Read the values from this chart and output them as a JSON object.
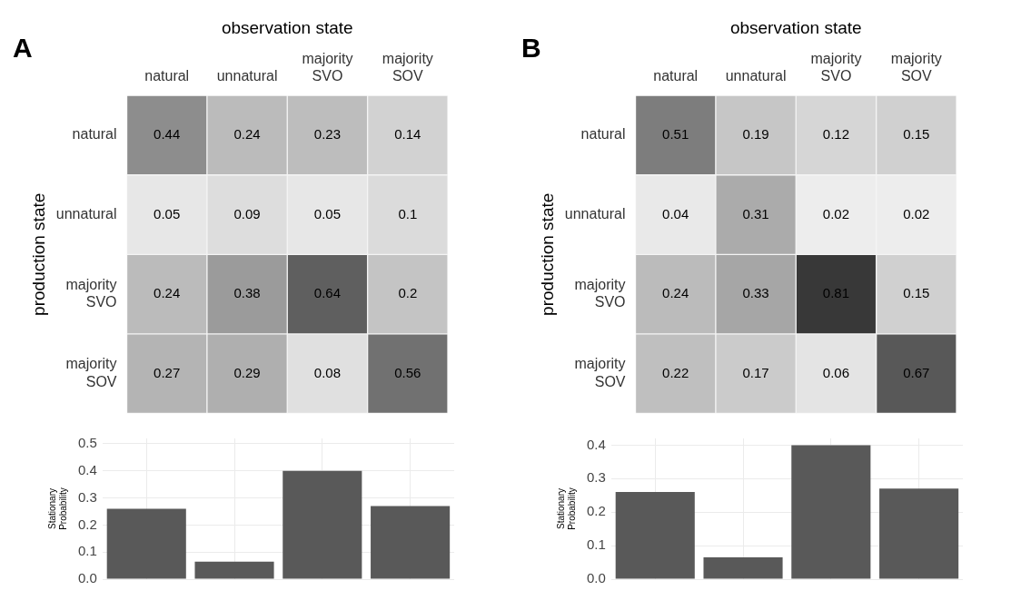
{
  "chart_data": [
    {
      "type": "heatmap",
      "xlabel": "observation state",
      "ylabel": "production state",
      "annotations": [
        "A"
      ],
      "categories": [
        "natural",
        "unnatural",
        "majority SVO",
        "majority SOV"
      ],
      "y_categories": [
        "natural",
        "unnatural",
        "majority SVO",
        "majority SOV"
      ],
      "data_labels": true,
      "cells": [
        [
          0.44,
          0.24,
          0.23,
          0.14
        ],
        [
          0.05,
          0.09,
          0.05,
          0.1
        ],
        [
          0.24,
          0.38,
          0.64,
          0.2
        ],
        [
          0.27,
          0.29,
          0.08,
          0.56
        ]
      ]
    },
    {
      "type": "bar",
      "ylabel": "Stationary Probability",
      "categories": [
        null,
        null,
        null,
        null
      ],
      "values": [
        0.26,
        0.065,
        0.4,
        0.27
      ],
      "color": "#595959",
      "ylim": [
        0,
        0.52
      ],
      "yticks": [
        {
          "value": 0,
          "label": "0.0"
        },
        {
          "value": 0.1,
          "label": "0.1"
        },
        {
          "value": 0.2,
          "label": "0.2"
        },
        {
          "value": 0.3,
          "label": "0.3"
        },
        {
          "value": 0.4,
          "label": "0.4"
        },
        {
          "value": 0.5,
          "label": "0.5"
        }
      ],
      "grid": true,
      "tick_labels": "y"
    },
    {
      "type": "heatmap",
      "xlabel": "observation state",
      "ylabel": "production state",
      "annotations": [
        "B"
      ],
      "categories": [
        "natural",
        "unnatural",
        "majority SVO",
        "majority SOV"
      ],
      "y_categories": [
        "natural",
        "unnatural",
        "majority SVO",
        "majority SOV"
      ],
      "data_labels": true,
      "cells": [
        [
          0.51,
          0.19,
          0.12,
          0.15
        ],
        [
          0.04,
          0.31,
          0.02,
          0.02
        ],
        [
          0.24,
          0.33,
          0.81,
          0.15
        ],
        [
          0.22,
          0.17,
          0.06,
          0.67
        ]
      ]
    },
    {
      "type": "bar",
      "ylabel": "Stationary Probability",
      "categories": [
        null,
        null,
        null,
        null
      ],
      "values": [
        0.26,
        0.065,
        0.4,
        0.27
      ],
      "color": "#595959",
      "ylim": [
        0,
        0.42
      ],
      "yticks": [
        {
          "value": 0,
          "label": "0.0"
        },
        {
          "value": 0.1,
          "label": "0.1"
        },
        {
          "value": 0.2,
          "label": "0.2"
        },
        {
          "value": 0.3,
          "label": "0.3"
        },
        {
          "value": 0.4,
          "label": "0.4"
        }
      ],
      "grid": true,
      "tick_labels": "y"
    }
  ]
}
